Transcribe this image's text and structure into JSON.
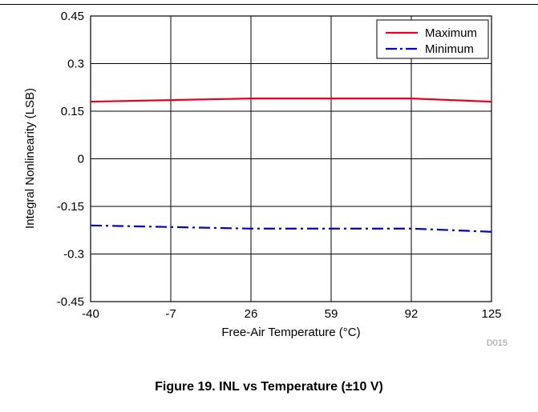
{
  "chart_data": {
    "type": "line",
    "x": [
      -40,
      -7,
      26,
      59,
      92,
      125
    ],
    "xticks": [
      "-40",
      "-7",
      "26",
      "59",
      "92",
      "125"
    ],
    "yticks": [
      "0.45",
      "0.3",
      "0.15",
      "0",
      "-0.15",
      "-0.3",
      "-0.45"
    ],
    "xlim": [
      -40,
      125
    ],
    "ylim": [
      -0.45,
      0.45
    ],
    "xlabel": "Free-Air Temperature (°C)",
    "ylabel": "Integral Nonlinearity (LSB)",
    "grid": true,
    "legend_position": "top-right",
    "series": [
      {
        "name": "Maximum",
        "color": "#e8001c",
        "style": "solid",
        "values": [
          0.18,
          0.185,
          0.19,
          0.19,
          0.19,
          0.18
        ]
      },
      {
        "name": "Minimum",
        "color": "#0000cc",
        "style": "dash-dot",
        "values": [
          -0.21,
          -0.215,
          -0.22,
          -0.22,
          -0.22,
          -0.23
        ]
      }
    ],
    "annotation": "D015"
  },
  "caption": "Figure 19. INL vs Temperature (±10 V)"
}
